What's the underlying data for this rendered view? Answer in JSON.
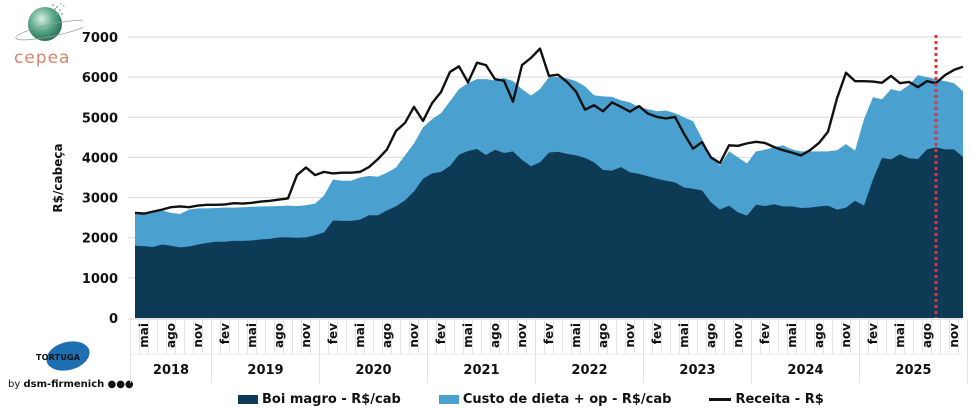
{
  "logos": {
    "cepea": "cepea",
    "tortuga": "TORTUGA",
    "byline_prefix": "by",
    "byline_brand": "dsm-firmenich"
  },
  "colors": {
    "boi_magro": "#0d3a55",
    "custo_dieta": "#4aa1d0",
    "receita": "#111111",
    "marker": "#d9363e",
    "grid": "#d9d9d9"
  },
  "chart_data": {
    "type": "area",
    "title": "",
    "xlabel": "",
    "ylabel": "R$/cabeça",
    "ylim": [
      0,
      7000
    ],
    "yticks": [
      0,
      1000,
      2000,
      3000,
      4000,
      5000,
      6000,
      7000
    ],
    "grid": true,
    "legend_position": "bottom",
    "x_start": "2018-04",
    "x_end": "2025-12",
    "month_tick_labels": [
      "fev",
      "mai",
      "ago",
      "nov"
    ],
    "year_labels": [
      "2018",
      "2019",
      "2020",
      "2021",
      "2022",
      "2023",
      "2024",
      "2025"
    ],
    "marker_line": {
      "month": "2025-09",
      "style": "dotted",
      "color": "#d9363e"
    },
    "series": [
      {
        "name": "Boi magro - R$/cab",
        "kind": "stacked-area-bottom",
        "values": [
          1800,
          1790,
          1770,
          1830,
          1800,
          1760,
          1780,
          1830,
          1870,
          1900,
          1900,
          1920,
          1920,
          1930,
          1960,
          1970,
          2010,
          2010,
          2000,
          2010,
          2060,
          2130,
          2430,
          2420,
          2420,
          2450,
          2560,
          2560,
          2680,
          2780,
          2930,
          3150,
          3470,
          3600,
          3640,
          3790,
          4070,
          4160,
          4210,
          4060,
          4190,
          4110,
          4150,
          3940,
          3780,
          3880,
          4120,
          4140,
          4090,
          4050,
          3990,
          3880,
          3690,
          3670,
          3760,
          3630,
          3590,
          3530,
          3470,
          3420,
          3380,
          3250,
          3220,
          3180,
          2880,
          2700,
          2800,
          2630,
          2550,
          2820,
          2790,
          2830,
          2780,
          2780,
          2740,
          2750,
          2780,
          2800,
          2700,
          2750,
          2920,
          2800,
          3450,
          3990,
          3950,
          4080,
          3980,
          3960,
          4200,
          4250,
          4200,
          4200,
          4010
        ]
      },
      {
        "name": "Custo de dieta + op - R$/cab",
        "kind": "stacked-area-top",
        "values_total": [
          2600,
          2580,
          2620,
          2680,
          2620,
          2590,
          2700,
          2730,
          2730,
          2740,
          2750,
          2750,
          2760,
          2770,
          2780,
          2780,
          2790,
          2800,
          2790,
          2810,
          2850,
          3050,
          3450,
          3420,
          3420,
          3500,
          3540,
          3520,
          3620,
          3750,
          4050,
          4350,
          4750,
          4950,
          5100,
          5400,
          5700,
          5850,
          5950,
          5950,
          5920,
          5980,
          5900,
          5700,
          5540,
          5700,
          6000,
          6000,
          5970,
          5900,
          5770,
          5550,
          5520,
          5510,
          5420,
          5370,
          5250,
          5200,
          5150,
          5170,
          5100,
          5000,
          4900,
          4470,
          4020,
          3800,
          4150,
          4000,
          3850,
          4150,
          4190,
          4250,
          4300,
          4200,
          4150,
          4150,
          4150,
          4150,
          4180,
          4330,
          4170,
          4950,
          5500,
          5450,
          5700,
          5650,
          5800,
          6050,
          6000,
          5950,
          5900,
          5850,
          5650
        ]
      },
      {
        "name": "Receita - R$",
        "kind": "line",
        "values": [
          2620,
          2600,
          2650,
          2700,
          2760,
          2780,
          2760,
          2800,
          2820,
          2820,
          2830,
          2860,
          2850,
          2870,
          2900,
          2920,
          2950,
          2980,
          3560,
          3750,
          3560,
          3640,
          3600,
          3620,
          3620,
          3640,
          3760,
          3960,
          4200,
          4660,
          4860,
          5260,
          4910,
          5350,
          5630,
          6130,
          6270,
          5870,
          6360,
          6300,
          5950,
          5910,
          5390,
          6300,
          6480,
          6710,
          6030,
          6060,
          5880,
          5640,
          5190,
          5300,
          5150,
          5370,
          5260,
          5140,
          5280,
          5090,
          5010,
          4970,
          5010,
          4590,
          4220,
          4380,
          4000,
          3860,
          4300,
          4290,
          4350,
          4390,
          4360,
          4260,
          4180,
          4120,
          4050,
          4180,
          4360,
          4640,
          5470,
          6110,
          5900,
          5900,
          5890,
          5860,
          6030,
          5850,
          5880,
          5750,
          5900,
          5850,
          6050,
          6180,
          6260
        ]
      }
    ]
  },
  "legend": [
    {
      "label": "Boi magro - R$/cab",
      "type": "box",
      "color": "#0d3a55"
    },
    {
      "label": "Custo de dieta + op - R$/cab",
      "type": "box",
      "color": "#4aa1d0"
    },
    {
      "label": "Receita - R$",
      "type": "line",
      "color": "#111111"
    }
  ]
}
